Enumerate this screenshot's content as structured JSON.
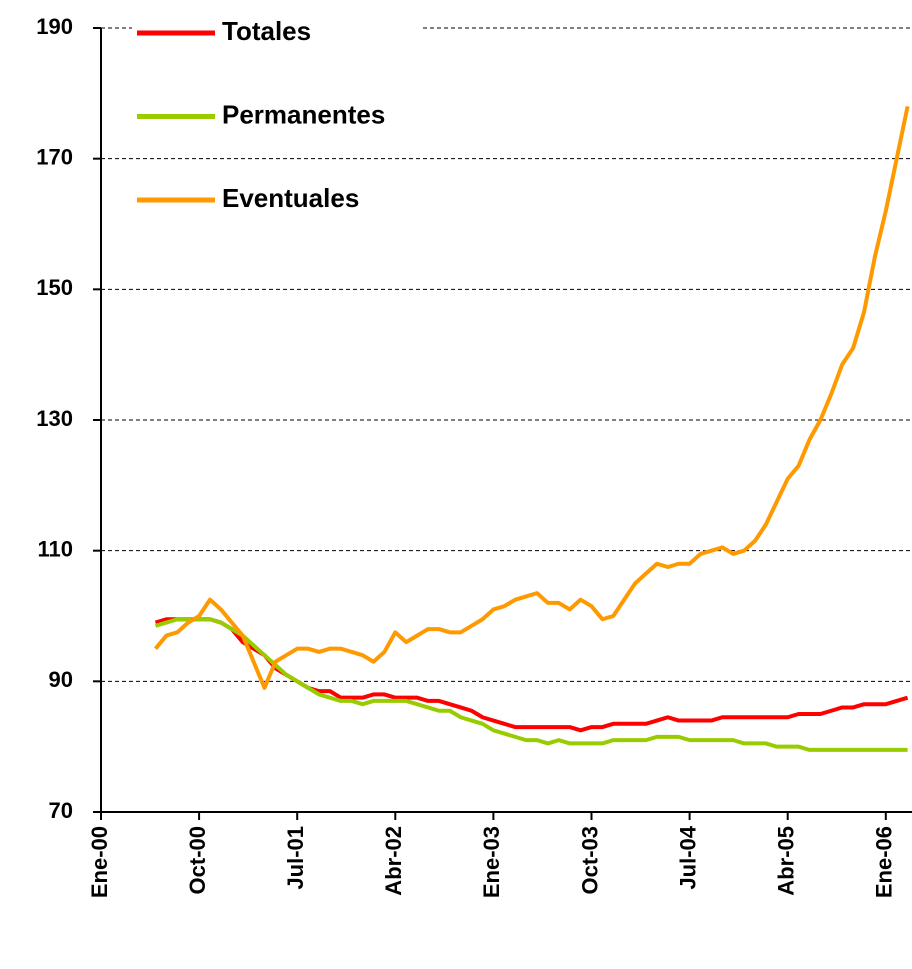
{
  "chart_data": {
    "type": "line",
    "categories": [
      "Ene-00",
      null,
      null,
      null,
      null,
      null,
      null,
      null,
      null,
      "Oct-00",
      null,
      null,
      null,
      null,
      null,
      null,
      null,
      null,
      "Jul-01",
      null,
      null,
      null,
      null,
      null,
      null,
      null,
      null,
      "Abr-02",
      null,
      null,
      null,
      null,
      null,
      null,
      null,
      null,
      "Ene-03",
      null,
      null,
      null,
      null,
      null,
      null,
      null,
      null,
      "Oct-03",
      null,
      null,
      null,
      null,
      null,
      null,
      null,
      null,
      "Jul-04",
      null,
      null,
      null,
      null,
      null,
      null,
      null,
      null,
      "Abr-05",
      null,
      null,
      null,
      null,
      null,
      null,
      null,
      null,
      "Ene-06",
      null,
      null
    ],
    "series": [
      {
        "name": "Totales",
        "color": "#ff0000",
        "values": [
          null,
          null,
          null,
          null,
          null,
          99,
          99.5,
          99.5,
          99.5,
          99.5,
          99.5,
          99,
          98,
          96,
          95,
          94,
          92,
          91,
          90,
          89,
          88.5,
          88.5,
          87.5,
          87.5,
          87.5,
          88,
          88,
          87.5,
          87.5,
          87.5,
          87,
          87,
          86.5,
          86,
          85.5,
          84.5,
          84,
          83.5,
          83,
          83,
          83,
          83,
          83,
          83,
          82.5,
          83,
          83,
          83.5,
          83.5,
          83.5,
          83.5,
          84,
          84.5,
          84,
          84,
          84,
          84,
          84.5,
          84.5,
          84.5,
          84.5,
          84.5,
          84.5,
          84.5,
          85,
          85,
          85,
          85.5,
          86,
          86,
          86.5,
          86.5,
          86.5,
          87,
          87.5
        ]
      },
      {
        "name": "Permanentes",
        "color": "#99cc00",
        "values": [
          null,
          null,
          null,
          null,
          null,
          98.5,
          99,
          99.5,
          99.5,
          99.5,
          99.5,
          99,
          98,
          97,
          95.5,
          94,
          92.5,
          91,
          90,
          89,
          88,
          87.5,
          87,
          87,
          86.5,
          87,
          87,
          87,
          87,
          86.5,
          86,
          85.5,
          85.5,
          84.5,
          84,
          83.5,
          82.5,
          82,
          81.5,
          81,
          81,
          80.5,
          81,
          80.5,
          80.5,
          80.5,
          80.5,
          81,
          81,
          81,
          81,
          81.5,
          81.5,
          81.5,
          81,
          81,
          81,
          81,
          81,
          80.5,
          80.5,
          80.5,
          80,
          80,
          80,
          79.5,
          79.5,
          79.5,
          79.5,
          79.5,
          79.5,
          79.5,
          79.5,
          79.5,
          79.5
        ]
      },
      {
        "name": "Eventuales",
        "color": "#ff9900",
        "values": [
          null,
          null,
          null,
          null,
          null,
          95,
          97,
          97.5,
          99,
          100,
          102.5,
          101,
          99,
          97,
          93,
          89,
          93,
          94,
          95,
          95,
          94.5,
          95,
          95,
          94.5,
          94,
          93,
          94.5,
          97.5,
          96,
          97,
          98,
          98,
          97.5,
          97.5,
          98.5,
          99.5,
          101,
          101.5,
          102.5,
          103,
          103.5,
          102,
          102,
          101,
          102.5,
          101.5,
          99.5,
          100,
          102.5,
          105,
          106.5,
          108,
          107.5,
          108,
          108,
          109.5,
          110,
          110.5,
          109.5,
          110,
          111.5,
          114,
          117.5,
          121,
          123,
          127,
          130,
          134,
          138.5,
          141,
          146.5,
          155,
          162,
          170,
          178
        ]
      }
    ],
    "ylim": [
      70,
      190
    ],
    "yticks": [
      70,
      90,
      110,
      130,
      150,
      170,
      190
    ],
    "grid": true,
    "legend": "top-left"
  }
}
